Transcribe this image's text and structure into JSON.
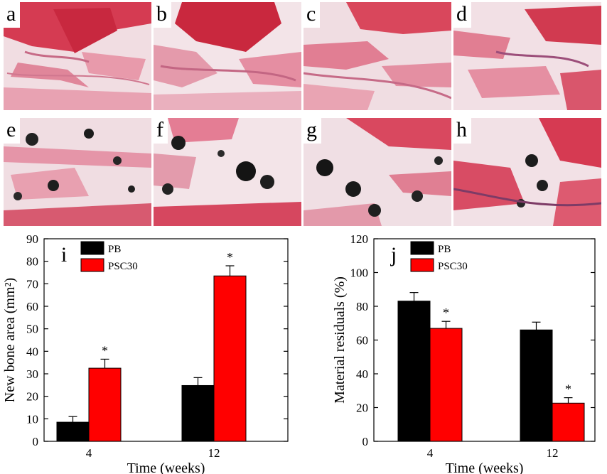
{
  "panel_labels": [
    "a",
    "b",
    "c",
    "d",
    "e",
    "f",
    "g",
    "h"
  ],
  "colors": {
    "PB": "#000000",
    "PSC30": "#ff0000"
  },
  "chart_data": [
    {
      "type": "bar",
      "panel_label": "i",
      "categories": [
        "4",
        "12"
      ],
      "series": [
        {
          "name": "PB",
          "values": [
            8.5,
            24.8
          ],
          "errors": [
            2.5,
            3.5
          ]
        },
        {
          "name": "PSC30",
          "values": [
            32.5,
            73.5
          ],
          "errors": [
            4.0,
            4.5
          ]
        }
      ],
      "significance": [
        [
          "",
          ""
        ],
        [
          "*",
          "*"
        ]
      ],
      "xlabel": "Time (weeks)",
      "ylabel": "New bone area (mm²)",
      "ylim": [
        0,
        90
      ],
      "yticks": [
        "0",
        "10",
        "20",
        "30",
        "40",
        "50",
        "60",
        "70",
        "80",
        "90"
      ],
      "legend": "top-left",
      "grid": false
    },
    {
      "type": "bar",
      "panel_label": "j",
      "categories": [
        "4",
        "12"
      ],
      "series": [
        {
          "name": "PB",
          "values": [
            90,
            71.5
          ],
          "errors": [
            5.5,
            5.0
          ]
        },
        {
          "name": "PSC30",
          "values": [
            72.5,
            24.5
          ],
          "errors": [
            4.5,
            3.5
          ]
        }
      ],
      "significance": [
        [
          "",
          ""
        ],
        [
          "*",
          "*"
        ]
      ],
      "xlabel": "Time (weeks)",
      "ylabel": "Material residuals (%)",
      "ylim": [
        0,
        130
      ],
      "yticks": [
        "0",
        "20",
        "40",
        "60",
        "80",
        "100",
        "120"
      ],
      "legend": "top-left",
      "grid": false
    }
  ]
}
